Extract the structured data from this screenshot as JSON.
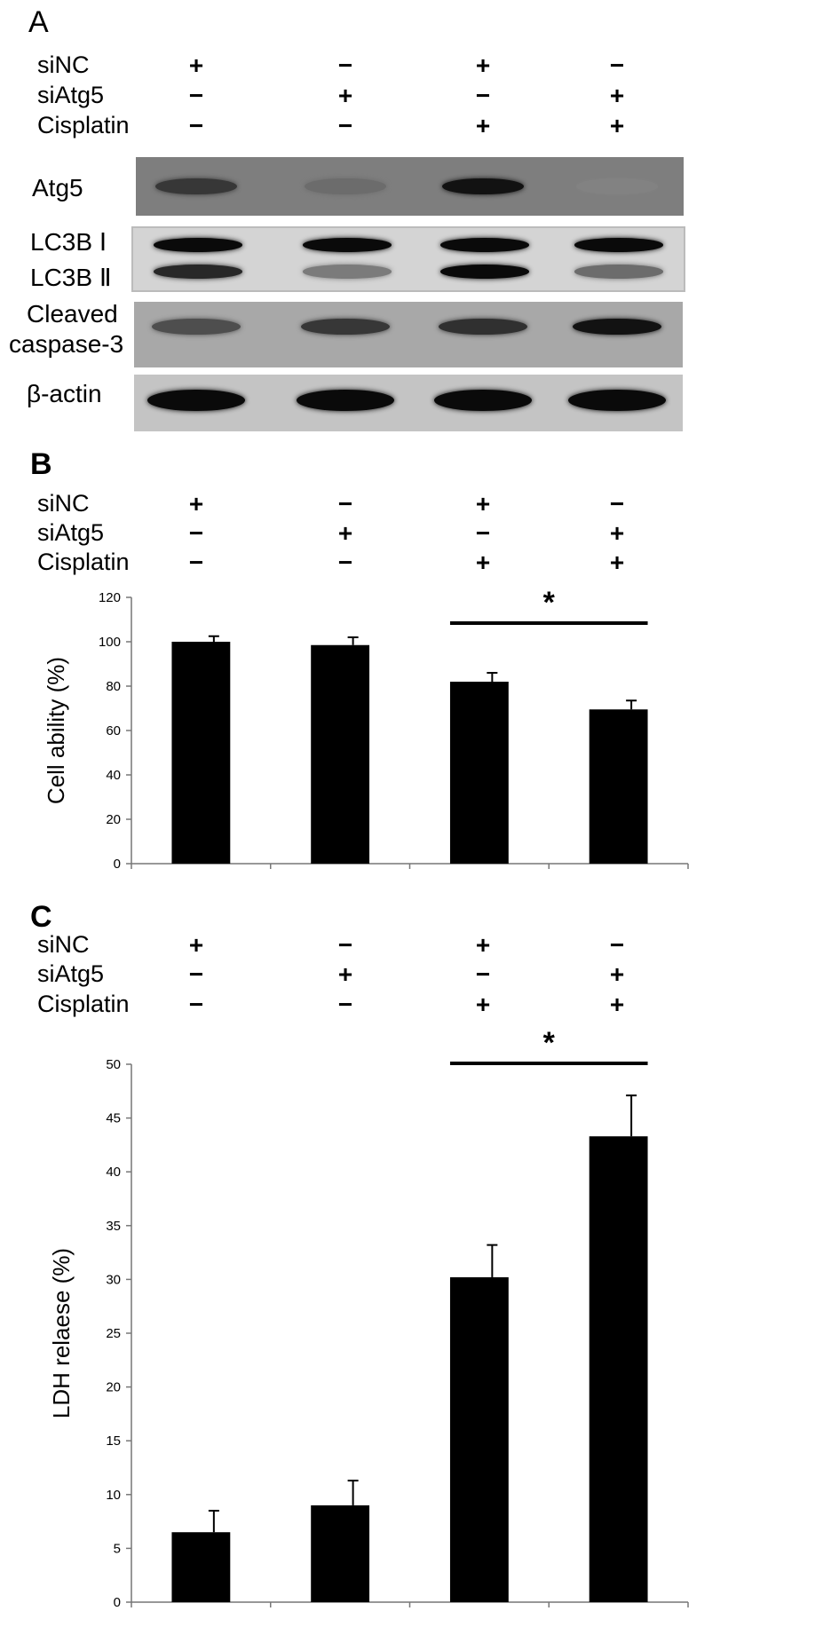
{
  "panels": {
    "a": {
      "letter": "A",
      "conditions": [
        {
          "label": "siNC",
          "signs": [
            "+",
            "−",
            "+",
            "−"
          ]
        },
        {
          "label": "siAtg5",
          "signs": [
            "−",
            "+",
            "−",
            "+"
          ]
        },
        {
          "label": "Cisplatin",
          "signs": [
            "−",
            "−",
            "+",
            "+"
          ]
        }
      ],
      "blots": {
        "atg5": {
          "label": "Atg5",
          "intensity": [
            0.7,
            0.35,
            0.95,
            0.2
          ]
        },
        "lc3b": {
          "label_1": "LC3B Ⅰ",
          "label_2": "LC3B Ⅱ",
          "intensity_1": [
            1.0,
            1.0,
            1.0,
            1.0
          ],
          "intensity_2": [
            0.8,
            0.25,
            1.0,
            0.35
          ]
        },
        "caspase": {
          "label_1": "Cleaved",
          "label_2": "caspase-3",
          "intensity": [
            0.55,
            0.7,
            0.75,
            0.95
          ]
        },
        "actin": {
          "label": "β-actin",
          "intensity": [
            1.0,
            1.0,
            1.0,
            1.0
          ]
        }
      }
    },
    "b": {
      "letter": "B",
      "conditions": [
        {
          "label": "siNC",
          "signs": [
            "+",
            "−",
            "+",
            "−"
          ]
        },
        {
          "label": "siAtg5",
          "signs": [
            "−",
            "+",
            "−",
            "+"
          ]
        },
        {
          "label": "Cisplatin",
          "signs": [
            "−",
            "−",
            "+",
            "+"
          ]
        }
      ],
      "significance": "*"
    },
    "c": {
      "letter": "C",
      "conditions": [
        {
          "label": "siNC",
          "signs": [
            "+",
            "−",
            "+",
            "−"
          ]
        },
        {
          "label": "siAtg5",
          "signs": [
            "−",
            "+",
            "−",
            "+"
          ]
        },
        {
          "label": "Cisplatin",
          "signs": [
            "−",
            "−",
            "+",
            "+"
          ]
        }
      ],
      "significance": "*"
    }
  },
  "chart_data": [
    {
      "type": "bar",
      "ylabel": "Cell ability (%)",
      "ylim": [
        0,
        120
      ],
      "yticks": [
        0,
        20,
        40,
        60,
        80,
        100,
        120
      ],
      "values": [
        100,
        98.5,
        82,
        69.5
      ],
      "errors": [
        2.5,
        3.5,
        4,
        4
      ],
      "color": "#000000",
      "significance_bracket": [
        3,
        4
      ]
    },
    {
      "type": "bar",
      "ylabel": "LDH relaese (%)",
      "ylim": [
        0,
        50
      ],
      "yticks": [
        0,
        5,
        10,
        15,
        20,
        25,
        30,
        35,
        40,
        45,
        50
      ],
      "values": [
        6.5,
        9,
        30.2,
        43.3
      ],
      "errors": [
        2,
        2.3,
        3,
        3.8
      ],
      "color": "#000000",
      "significance_bracket": [
        3,
        4
      ]
    }
  ]
}
